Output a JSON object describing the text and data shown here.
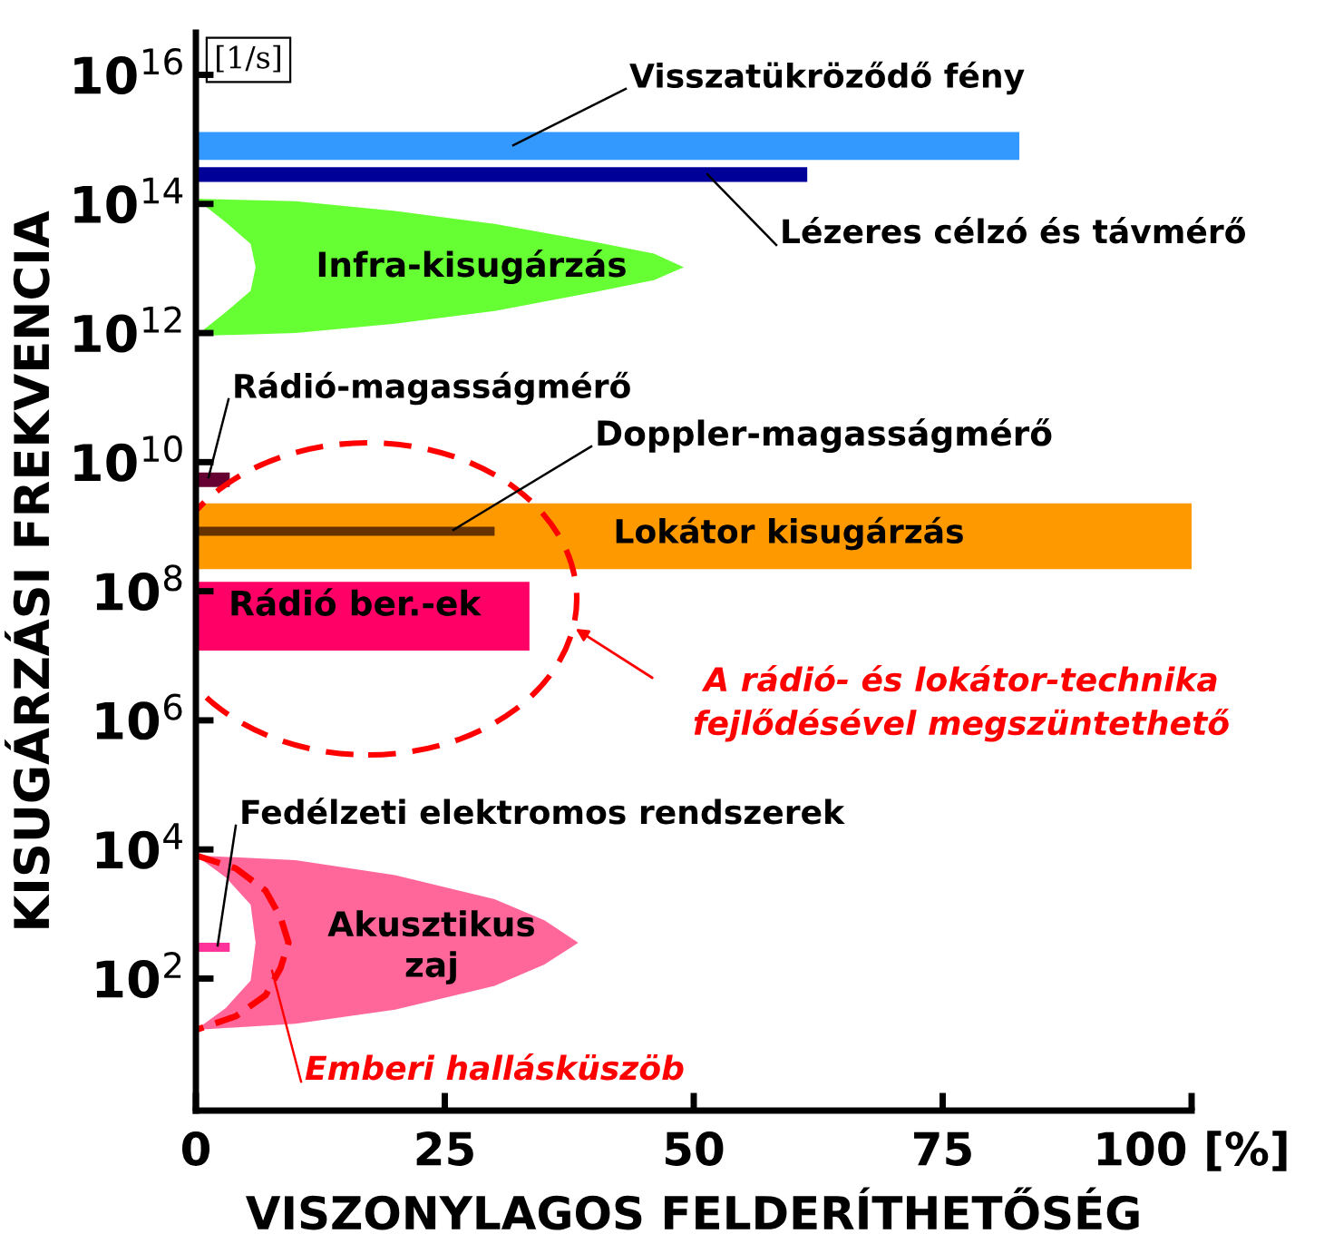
{
  "chart_data": {
    "type": "area",
    "xlabel": "VISZONYLAGOS FELDERÍTHETŐSÉG",
    "ylabel": "KISUGÁRZÁSI FREKVENCIA",
    "log": "y",
    "xlim": [
      0,
      100
    ],
    "ylim": [
      0.9,
      4.5e+16
    ],
    "grid": false,
    "xticks": [
      0,
      25,
      50,
      75,
      {
        "value": 100,
        "label": "100 [%]"
      }
    ],
    "yticks": [
      {
        "value": 100,
        "label": "10$^{2}$"
      },
      {
        "value": 10000,
        "label": "10$^{4}$"
      },
      {
        "value": 1000000,
        "label": "10$^{6}$"
      },
      {
        "value": 100000000,
        "label": "10$^{8}$"
      },
      {
        "value": 10000000000,
        "label": "10$^{10}$"
      },
      {
        "value": 1000000000000,
        "label": "10$^{12}$"
      },
      {
        "value": 100000000000000,
        "label": "10$^{14}$"
      },
      {
        "value": 10000000000000000,
        "label": "10$^{16}$"
      }
    ],
    "annotations": [
      "[1/s]",
      "A rádió- és lokátor-technika\nfejlődésével megszüntethető"
    ],
    "series": [
      {
        "name": "Visszatükröződő fény",
        "color": "#3399ff",
        "x": [
          0,
          82.7,
          82.7,
          0
        ],
        "values": [
          1300000000000000.0,
          1300000000000000.0,
          480000000000000.0,
          480000000000000.0
        ]
      },
      {
        "name": "Lézeres célzó és távmérő",
        "color": "#000099",
        "x": [
          0,
          61.4,
          61.4,
          0
        ],
        "values": [
          370000000000000.0,
          370000000000000.0,
          220000000000000.0,
          220000000000000.0
        ]
      },
      {
        "name": "Infra-kisugárzás",
        "color": "#66ff33",
        "x": [
          0,
          10,
          20,
          30,
          40,
          46,
          49,
          46,
          40,
          30,
          20,
          10,
          0,
          3,
          5.5,
          6,
          5.5,
          3
        ],
        "values": [
          120000000000000.0,
          110000000000000.0,
          78000000000000.0,
          49000000000000.0,
          26000000000000.0,
          17000000000000.0,
          10500000000000.0,
          6600000000000.0,
          4300000000000.0,
          2200000000000.0,
          1400000000000.0,
          1000000000000.0,
          900000000000.0,
          2100000000000.0,
          4500000000000.0,
          10500000000000.0,
          24000000000000.0,
          52000000000000.0
        ]
      },
      {
        "name": "Rádió-magasságmérő",
        "color": "#660033",
        "x": [
          0,
          3.4,
          3.4,
          0
        ],
        "values": [
          6900000000.0,
          6900000000.0,
          4100000000.0,
          4100000000.0
        ]
      },
      {
        "name": "Lokátor kisugárzás",
        "color": "#ff9900",
        "x": [
          0,
          100,
          100,
          0
        ],
        "values": [
          2300000000.0,
          2300000000.0,
          220000000.0,
          220000000.0
        ]
      },
      {
        "name": "Doppler-magasságmérő",
        "color": "#663300",
        "x": [
          0,
          30,
          30,
          0
        ],
        "values": [
          1000000000.0,
          1000000000.0,
          720000000.0,
          720000000.0
        ]
      },
      {
        "name": "Rádió ber.-ek",
        "color": "#ff0066",
        "x": [
          0,
          33.5,
          33.5,
          0
        ],
        "values": [
          140000000.0,
          140000000.0,
          12000000.0,
          12000000.0
        ]
      },
      {
        "name": "Fedélzeti elektromos rendszerek",
        "color": "#ff3399",
        "x": [
          0,
          3.4,
          3.4,
          0
        ],
        "values": [
          360,
          360,
          260,
          260
        ]
      },
      {
        "name": "Akusztikus\nzaj",
        "color": "#ff6699",
        "x": [
          0,
          10,
          20,
          30,
          35,
          38.4,
          35,
          30,
          20,
          10,
          0,
          3,
          5.5,
          6,
          5.5,
          3
        ],
        "values": [
          8100,
          6800,
          4000,
          1700,
          800,
          360,
          165,
          77,
          33,
          20,
          16,
          35,
          93,
          360,
          1400,
          3700
        ]
      },
      {
        "name": "Emberi hallásküszöb",
        "type": "line",
        "line_style": "dashed",
        "color": "#ff0000",
        "x": [
          0,
          4,
          7,
          8.5,
          9.3,
          8.5,
          7,
          4,
          0
        ],
        "values": [
          8100,
          5100,
          2300,
          890,
          360,
          145,
          55,
          26,
          16
        ]
      }
    ]
  }
}
